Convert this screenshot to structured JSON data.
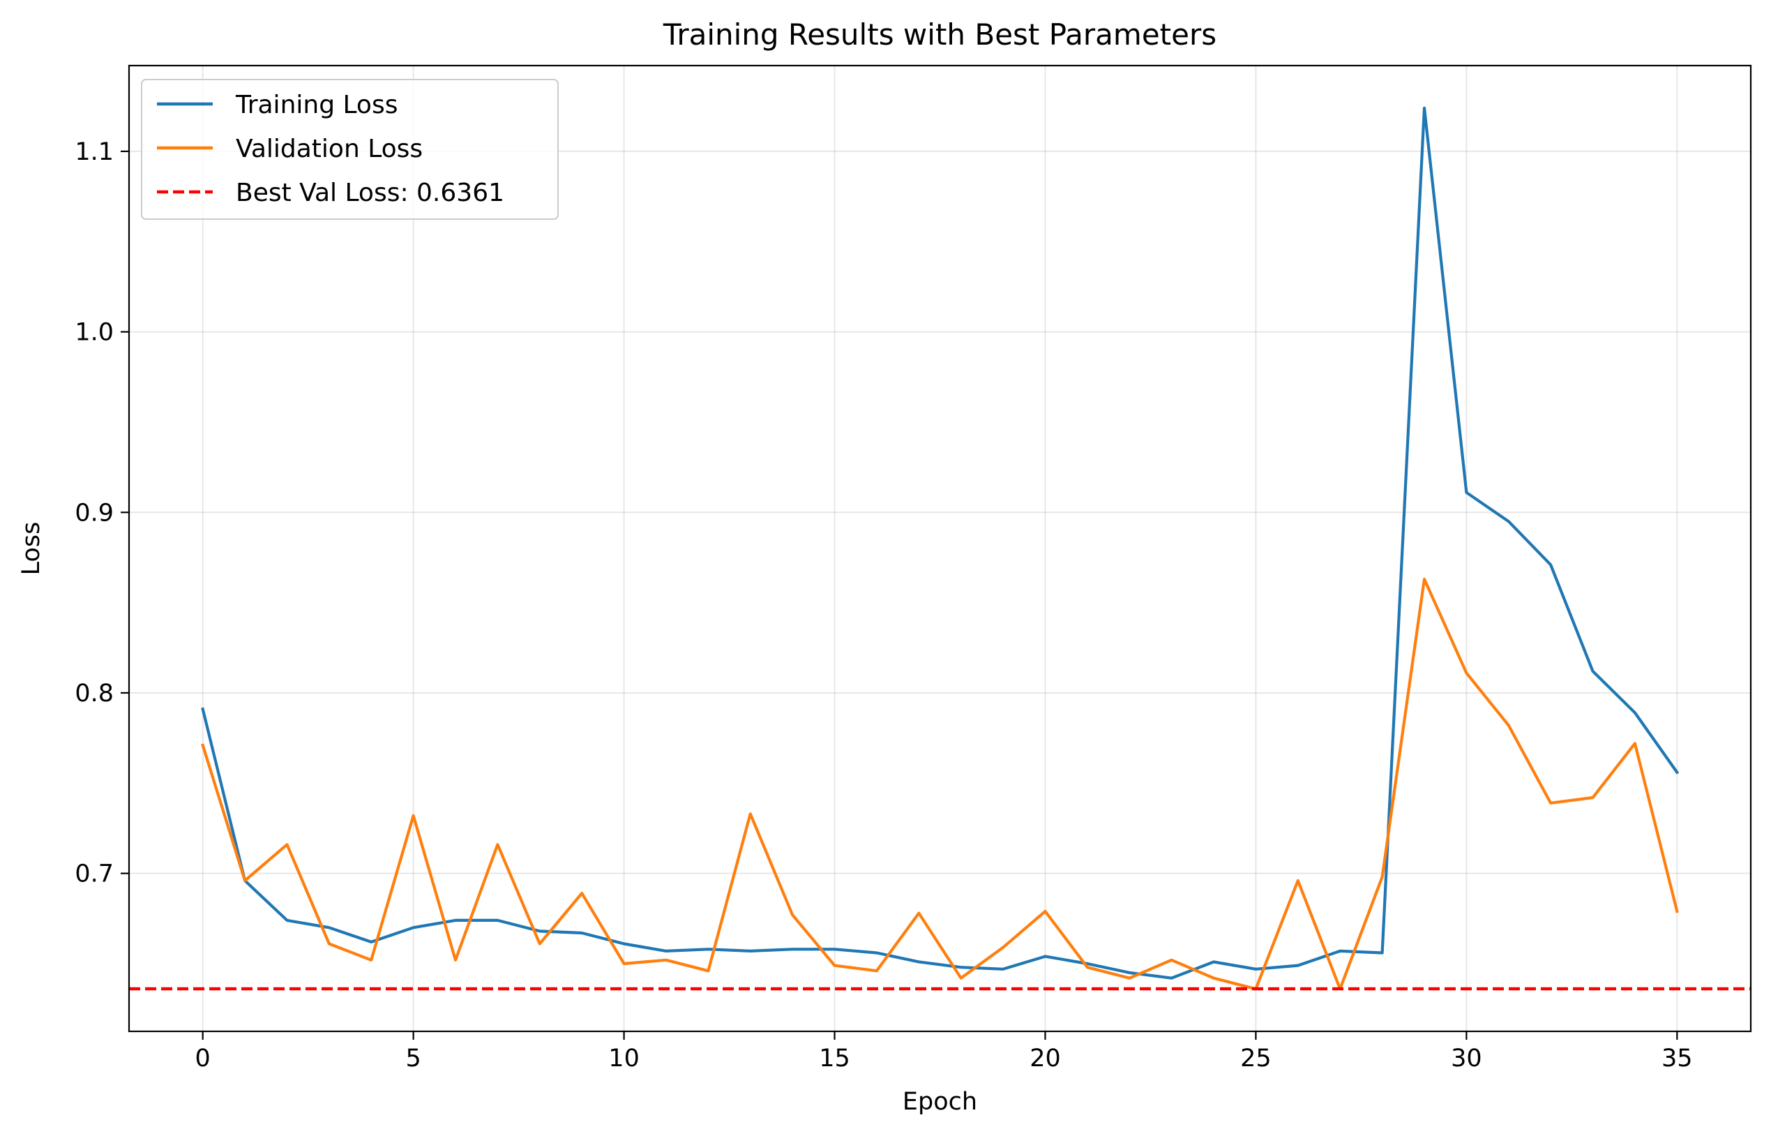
{
  "chart_data": {
    "type": "line",
    "title": "Training Results with Best Parameters",
    "xlabel": "Epoch",
    "ylabel": "Loss",
    "xlim": [
      -1.75,
      36.75
    ],
    "ylim": [
      0.6125,
      1.1475
    ],
    "xticks": [
      0,
      5,
      10,
      15,
      20,
      25,
      30,
      35
    ],
    "yticks": [
      0.7,
      0.8,
      0.9,
      1.0,
      1.1
    ],
    "xtick_labels": [
      "0",
      "5",
      "10",
      "15",
      "20",
      "25",
      "30",
      "35"
    ],
    "ytick_labels": [
      "0.7",
      "0.8",
      "0.9",
      "1.0",
      "1.1"
    ],
    "grid": true,
    "legend_position": "top-left",
    "x": [
      0,
      1,
      2,
      3,
      4,
      5,
      6,
      7,
      8,
      9,
      10,
      11,
      12,
      13,
      14,
      15,
      16,
      17,
      18,
      19,
      20,
      21,
      22,
      23,
      24,
      25,
      26,
      27,
      28,
      29,
      30,
      31,
      32,
      33,
      34,
      35
    ],
    "series": [
      {
        "name": "Training Loss",
        "color": "#1f77b4",
        "values": [
          0.791,
          0.696,
          0.674,
          0.67,
          0.662,
          0.67,
          0.674,
          0.674,
          0.668,
          0.667,
          0.661,
          0.657,
          0.658,
          0.657,
          0.658,
          0.658,
          0.656,
          0.651,
          0.648,
          0.647,
          0.654,
          0.65,
          0.645,
          0.642,
          0.651,
          0.647,
          0.649,
          0.657,
          0.656,
          1.124,
          0.911,
          0.895,
          0.871,
          0.812,
          0.789,
          0.756
        ]
      },
      {
        "name": "Validation Loss",
        "color": "#ff7f0e",
        "values": [
          0.771,
          0.696,
          0.716,
          0.661,
          0.652,
          0.732,
          0.652,
          0.716,
          0.661,
          0.689,
          0.65,
          0.652,
          0.646,
          0.733,
          0.677,
          0.649,
          0.646,
          0.678,
          0.642,
          0.659,
          0.679,
          0.648,
          0.642,
          0.652,
          0.642,
          0.636,
          0.696,
          0.636,
          0.698,
          0.863,
          0.811,
          0.782,
          0.739,
          0.742,
          0.772,
          0.679
        ]
      }
    ],
    "reference_line": {
      "name": "Best Val Loss: 0.6361",
      "value": 0.6361,
      "color": "#ff0000",
      "style": "dashed"
    }
  }
}
